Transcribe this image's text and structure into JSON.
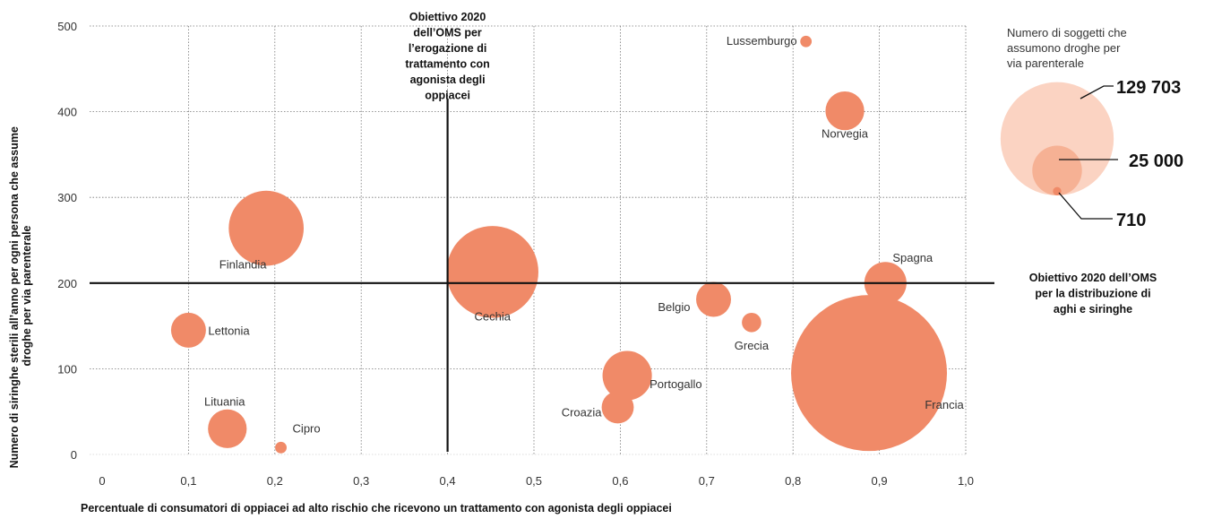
{
  "chart_data": {
    "type": "scatter",
    "xlabel": "Percentuale di consumatori di oppiacei ad alto rischio che ricevono un trattamento con agonista degli oppiacei",
    "ylabel": "Numero di siringhe sterili all’anno per ogni persona che assume droghe per via parenterale",
    "xlim": [
      0,
      1.0
    ],
    "ylim": [
      0,
      500
    ],
    "xticks": [
      "0",
      "0,1",
      "0,2",
      "0,3",
      "0,4",
      "0,5",
      "0,6",
      "0,7",
      "0,8",
      "0,9",
      "1,0"
    ],
    "yticks": [
      "0",
      "100",
      "200",
      "300",
      "400",
      "500"
    ],
    "grid": true,
    "points": [
      {
        "label": "Lussemburgo",
        "x": 0.815,
        "y": 482,
        "size": 700
      },
      {
        "label": "Norvegia",
        "x": 0.86,
        "y": 401,
        "size": 8000
      },
      {
        "label": "Finlandia",
        "x": 0.19,
        "y": 264,
        "size": 30000
      },
      {
        "label": "Spagna",
        "x": 0.907,
        "y": 200,
        "size": 9500
      },
      {
        "label": "Cechia",
        "x": 0.452,
        "y": 213,
        "size": 45000
      },
      {
        "label": "Belgio",
        "x": 0.708,
        "y": 181,
        "size": 6500
      },
      {
        "label": "Grecia",
        "x": 0.752,
        "y": 154,
        "size": 2000
      },
      {
        "label": "Lettonia",
        "x": 0.1,
        "y": 145,
        "size": 6500
      },
      {
        "label": "Francia",
        "x": 0.888,
        "y": 95,
        "size": 129703
      },
      {
        "label": "Portogallo",
        "x": 0.608,
        "y": 92,
        "size": 13000
      },
      {
        "label": "Croazia",
        "x": 0.597,
        "y": 55,
        "size": 5500
      },
      {
        "label": "Lituania",
        "x": 0.145,
        "y": 30,
        "size": 8000
      },
      {
        "label": "Cipro",
        "x": 0.207,
        "y": 8,
        "size": 710
      }
    ],
    "reference_lines": [
      {
        "axis": "x",
        "value": 0.4,
        "label": "Obiettivo 2020 dell’OMS per l’erogazione di trattamento con agonista degli oppiacei"
      },
      {
        "axis": "y",
        "value": 200,
        "label": "Obiettivo 2020 dell’OMS per la distribuzione di aghi e siringhe"
      }
    ],
    "size_legend": {
      "title": "Numero di soggetti che assumono droghe per via parenterale",
      "entries": [
        {
          "value": 129703,
          "label": "129 703"
        },
        {
          "value": 25000,
          "label": "25 000"
        },
        {
          "value": 710,
          "label": "710"
        }
      ]
    }
  },
  "colors": {
    "bubble": "#f08a68",
    "legend_large": "#fbd3c2",
    "legend_mid": "#f6b194",
    "legend_small": "#f08a68",
    "line": "#111111"
  }
}
